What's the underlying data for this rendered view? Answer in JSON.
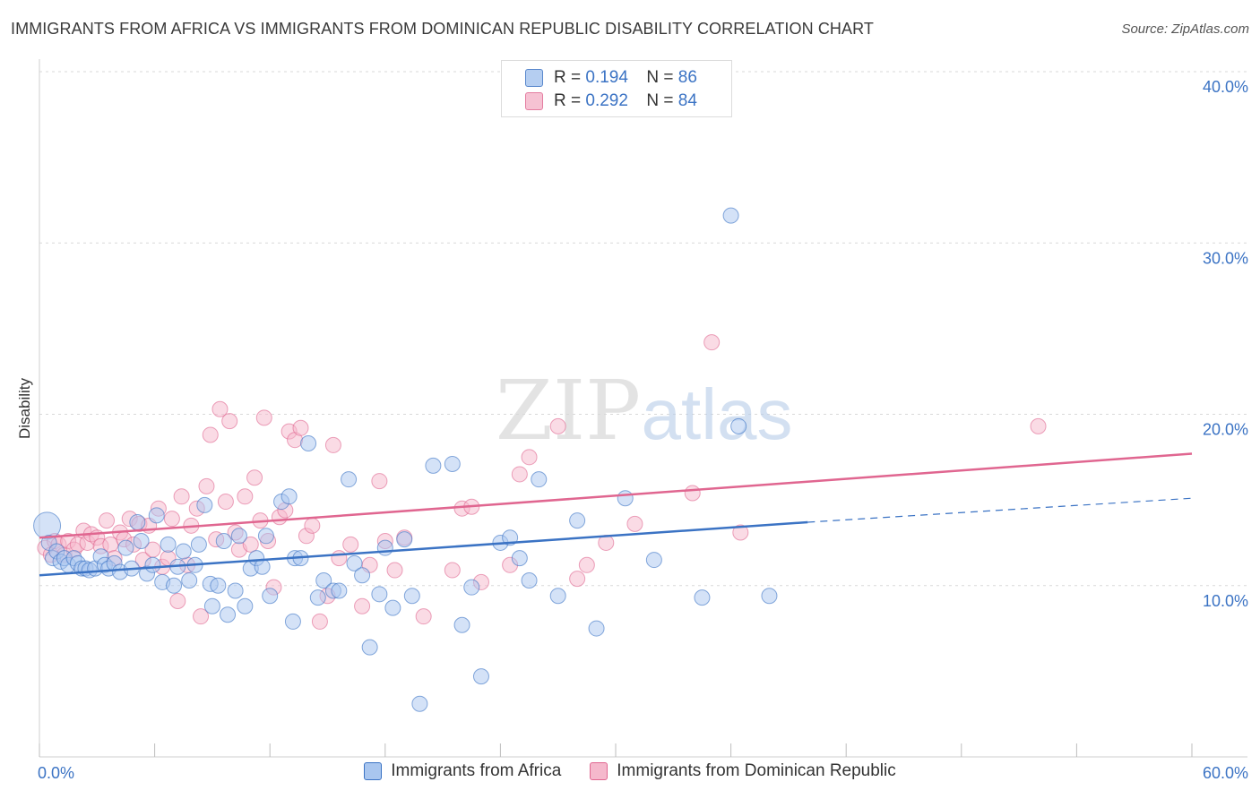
{
  "title": "IMMIGRANTS FROM AFRICA VS IMMIGRANTS FROM DOMINICAN REPUBLIC DISABILITY CORRELATION CHART",
  "source": "Source: ZipAtlas.com",
  "watermark": {
    "zip": "ZIP",
    "atlas": "atlas"
  },
  "colors": {
    "blue": "#3b73c4",
    "pink": "#e06690",
    "blue_fill": "#a9c6ef",
    "pink_fill": "#f5b8cc",
    "tick_label": "#3b73c4",
    "grid": "#d9d9d9"
  },
  "legend_inset": {
    "rows": [
      {
        "r_label": "R =",
        "r_value": "0.194",
        "n_label": "N =",
        "n_value": "86"
      },
      {
        "r_label": "R =",
        "r_value": "0.292",
        "n_label": "N =",
        "n_value": "84"
      }
    ]
  },
  "chart_data": {
    "type": "scatter",
    "title": "IMMIGRANTS FROM AFRICA VS IMMIGRANTS FROM DOMINICAN REPUBLIC DISABILITY CORRELATION CHART",
    "ylabel": "Disability",
    "xlim": [
      0,
      60
    ],
    "ylim": [
      0,
      40
    ],
    "x_tick_labels": [
      "0.0%",
      "60.0%"
    ],
    "y_ticks": [
      10,
      20,
      30,
      40
    ],
    "y_tick_labels": [
      "10.0%",
      "20.0%",
      "30.0%",
      "40.0%"
    ],
    "grid": "horizontal dashed",
    "legend": "bottom",
    "series": [
      {
        "name": "Immigrants from Africa",
        "color": "#3b73c4",
        "R": 0.194,
        "N": 86,
        "trend": {
          "x": [
            0,
            40
          ],
          "y": [
            10.6,
            13.7
          ],
          "dashed_extension_x": [
            40,
            60
          ],
          "dashed_extension_y": [
            13.7,
            15.1
          ]
        },
        "points": [
          [
            0.4,
            13.5
          ],
          [
            0.5,
            12.5
          ],
          [
            0.7,
            11.6
          ],
          [
            0.9,
            12.0
          ],
          [
            1.1,
            11.4
          ],
          [
            1.3,
            11.6
          ],
          [
            1.5,
            11.2
          ],
          [
            1.8,
            11.6
          ],
          [
            2.0,
            11.3
          ],
          [
            2.2,
            11.0
          ],
          [
            2.4,
            11.0
          ],
          [
            2.6,
            10.9
          ],
          [
            2.9,
            11.0
          ],
          [
            3.2,
            11.7
          ],
          [
            3.4,
            11.2
          ],
          [
            3.6,
            11.0
          ],
          [
            3.9,
            11.3
          ],
          [
            4.2,
            10.8
          ],
          [
            4.5,
            12.2
          ],
          [
            4.8,
            11.0
          ],
          [
            5.1,
            13.7
          ],
          [
            5.3,
            12.6
          ],
          [
            5.6,
            10.7
          ],
          [
            5.9,
            11.2
          ],
          [
            6.1,
            14.1
          ],
          [
            6.4,
            10.2
          ],
          [
            6.7,
            12.4
          ],
          [
            7.0,
            10.0
          ],
          [
            7.2,
            11.1
          ],
          [
            7.5,
            12.0
          ],
          [
            7.8,
            10.3
          ],
          [
            8.1,
            11.2
          ],
          [
            8.3,
            12.4
          ],
          [
            8.6,
            14.7
          ],
          [
            8.9,
            10.1
          ],
          [
            9.0,
            8.8
          ],
          [
            9.3,
            10.0
          ],
          [
            9.6,
            12.6
          ],
          [
            9.8,
            8.3
          ],
          [
            10.2,
            9.7
          ],
          [
            10.4,
            12.9
          ],
          [
            10.7,
            8.8
          ],
          [
            11.0,
            11.0
          ],
          [
            11.3,
            11.6
          ],
          [
            11.6,
            11.1
          ],
          [
            11.8,
            12.9
          ],
          [
            12.0,
            9.4
          ],
          [
            12.6,
            14.9
          ],
          [
            13.0,
            15.2
          ],
          [
            13.3,
            11.6
          ],
          [
            13.2,
            7.9
          ],
          [
            13.6,
            11.6
          ],
          [
            14.0,
            18.3
          ],
          [
            14.5,
            9.3
          ],
          [
            14.8,
            10.3
          ],
          [
            15.3,
            9.7
          ],
          [
            15.6,
            9.7
          ],
          [
            16.1,
            16.2
          ],
          [
            16.4,
            11.3
          ],
          [
            16.8,
            10.6
          ],
          [
            17.2,
            6.4
          ],
          [
            17.7,
            9.5
          ],
          [
            18.0,
            12.2
          ],
          [
            18.4,
            8.7
          ],
          [
            19.0,
            12.7
          ],
          [
            19.4,
            9.4
          ],
          [
            19.8,
            3.1
          ],
          [
            20.5,
            17.0
          ],
          [
            21.5,
            17.1
          ],
          [
            22.0,
            7.7
          ],
          [
            22.5,
            9.9
          ],
          [
            23.0,
            4.7
          ],
          [
            24.0,
            12.5
          ],
          [
            24.5,
            12.8
          ],
          [
            25.0,
            11.6
          ],
          [
            25.5,
            10.3
          ],
          [
            26.0,
            16.2
          ],
          [
            27.0,
            9.4
          ],
          [
            28.0,
            13.8
          ],
          [
            29.0,
            7.5
          ],
          [
            30.5,
            15.1
          ],
          [
            32.0,
            11.5
          ],
          [
            34.5,
            9.3
          ],
          [
            36.0,
            31.6
          ],
          [
            36.4,
            19.3
          ],
          [
            38.0,
            9.4
          ]
        ]
      },
      {
        "name": "Immigrants from Dominican Republic",
        "color": "#e06690",
        "R": 0.292,
        "N": 84,
        "trend": {
          "x": [
            0,
            60
          ],
          "y": [
            12.8,
            17.7
          ]
        },
        "points": [
          [
            0.3,
            12.2
          ],
          [
            0.6,
            11.8
          ],
          [
            0.8,
            12.6
          ],
          [
            1.0,
            12.4
          ],
          [
            1.3,
            11.8
          ],
          [
            1.5,
            12.6
          ],
          [
            1.8,
            12.1
          ],
          [
            2.0,
            12.4
          ],
          [
            2.3,
            13.2
          ],
          [
            2.5,
            12.5
          ],
          [
            2.7,
            13.0
          ],
          [
            3.0,
            12.8
          ],
          [
            3.2,
            12.3
          ],
          [
            3.5,
            13.8
          ],
          [
            3.7,
            12.4
          ],
          [
            3.9,
            11.6
          ],
          [
            4.2,
            13.1
          ],
          [
            4.4,
            12.7
          ],
          [
            4.7,
            13.9
          ],
          [
            4.9,
            12.4
          ],
          [
            5.2,
            13.6
          ],
          [
            5.4,
            11.5
          ],
          [
            5.7,
            13.5
          ],
          [
            5.9,
            12.1
          ],
          [
            6.2,
            14.5
          ],
          [
            6.4,
            11.1
          ],
          [
            6.7,
            11.6
          ],
          [
            6.9,
            13.9
          ],
          [
            7.2,
            9.1
          ],
          [
            7.4,
            15.2
          ],
          [
            7.7,
            11.2
          ],
          [
            7.9,
            13.5
          ],
          [
            8.2,
            14.5
          ],
          [
            8.4,
            8.2
          ],
          [
            8.7,
            15.8
          ],
          [
            8.9,
            18.8
          ],
          [
            9.2,
            12.7
          ],
          [
            9.4,
            20.3
          ],
          [
            9.7,
            14.9
          ],
          [
            9.9,
            19.6
          ],
          [
            10.2,
            13.1
          ],
          [
            10.4,
            12.1
          ],
          [
            10.7,
            15.2
          ],
          [
            11.0,
            12.4
          ],
          [
            11.2,
            16.3
          ],
          [
            11.5,
            13.8
          ],
          [
            11.7,
            19.8
          ],
          [
            11.9,
            12.6
          ],
          [
            12.2,
            9.9
          ],
          [
            12.5,
            14.0
          ],
          [
            12.8,
            14.4
          ],
          [
            13.0,
            19.0
          ],
          [
            13.3,
            18.5
          ],
          [
            13.6,
            19.2
          ],
          [
            13.9,
            12.9
          ],
          [
            14.2,
            13.5
          ],
          [
            14.6,
            7.9
          ],
          [
            15.0,
            9.4
          ],
          [
            15.3,
            18.2
          ],
          [
            15.6,
            11.6
          ],
          [
            16.2,
            12.4
          ],
          [
            16.8,
            8.8
          ],
          [
            17.2,
            11.2
          ],
          [
            17.7,
            16.1
          ],
          [
            18.0,
            12.6
          ],
          [
            18.5,
            10.9
          ],
          [
            19.0,
            12.8
          ],
          [
            20.0,
            8.2
          ],
          [
            21.5,
            10.9
          ],
          [
            22.0,
            14.5
          ],
          [
            22.5,
            14.6
          ],
          [
            23.0,
            10.2
          ],
          [
            24.5,
            11.2
          ],
          [
            25.0,
            16.5
          ],
          [
            25.5,
            17.5
          ],
          [
            27.0,
            19.3
          ],
          [
            28.0,
            10.4
          ],
          [
            28.5,
            11.2
          ],
          [
            29.5,
            12.5
          ],
          [
            31.0,
            13.6
          ],
          [
            34.0,
            15.4
          ],
          [
            35.0,
            24.2
          ],
          [
            36.5,
            13.1
          ],
          [
            52.0,
            19.3
          ]
        ]
      }
    ]
  }
}
